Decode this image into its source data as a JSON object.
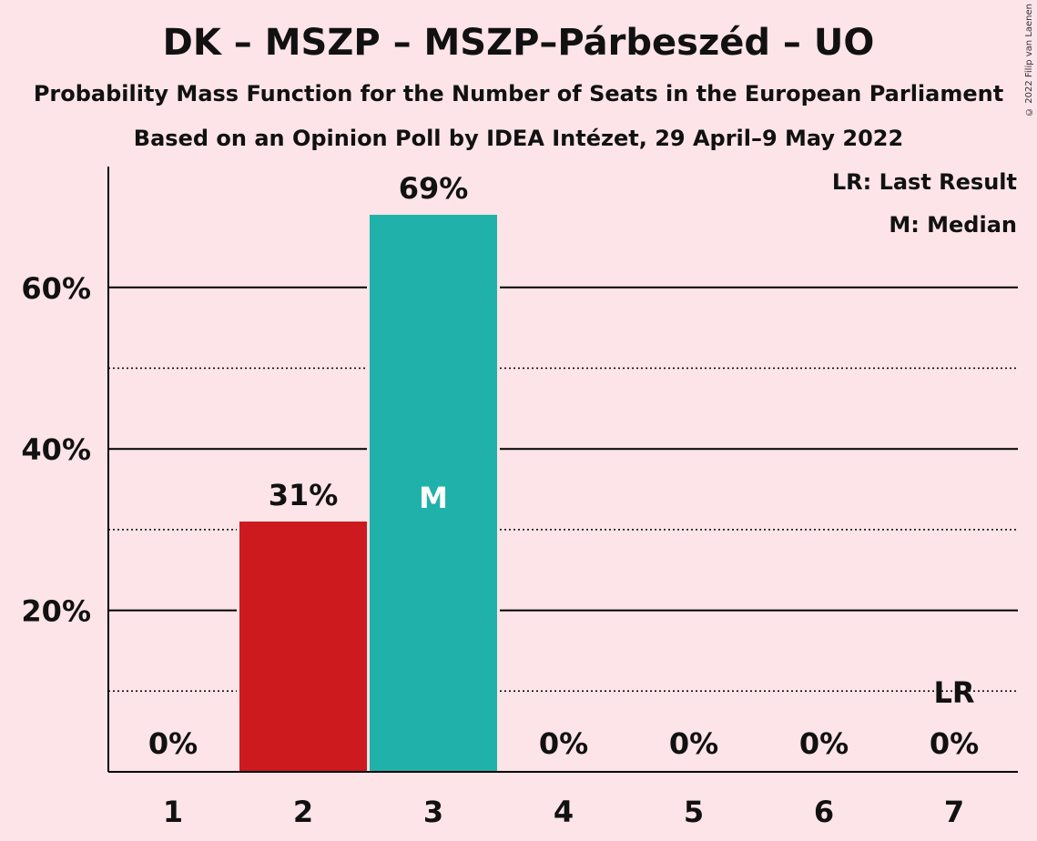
{
  "title": "DK – MSZP – MSZP–Párbeszéd – UO",
  "subtitle1": "Probability Mass Function for the Number of Seats in the European Parliament",
  "subtitle2": "Based on an Opinion Poll by IDEA Intézet, 29 April–9 May 2022",
  "copyright": "© 2022 Filip van Laenen",
  "legend": {
    "last_result": "LR: Last Result",
    "median": "M: Median"
  },
  "chart_data": {
    "type": "bar",
    "categories": [
      "1",
      "2",
      "3",
      "4",
      "5",
      "6",
      "7"
    ],
    "values": [
      0,
      31,
      69,
      0,
      0,
      0,
      0
    ],
    "value_labels": [
      "0%",
      "31%",
      "69%",
      "0%",
      "0%",
      "0%",
      "0%"
    ],
    "bar_colors": [
      "#cc1a1e",
      "#cc1a1e",
      "#20b2aa",
      "#20b2aa",
      "#20b2aa",
      "#20b2aa",
      "#20b2aa"
    ],
    "median_index": 2,
    "median_label": "M",
    "last_result_index": 6,
    "last_result_label": "LR",
    "ylim": [
      0,
      75
    ],
    "major_ticks": [
      20,
      40,
      60
    ],
    "major_tick_labels": [
      "20%",
      "40%",
      "60%"
    ],
    "minor_gridlines": [
      10,
      30,
      50
    ],
    "grid": true,
    "legend_position": "top-right"
  }
}
